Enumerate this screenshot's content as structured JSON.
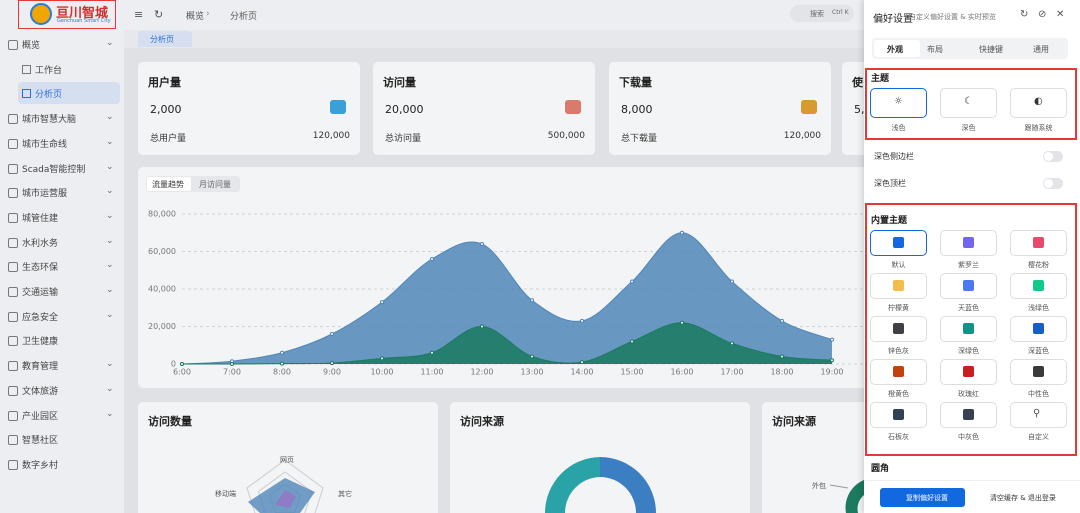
{
  "logo": {
    "title": "亘川智城",
    "subtitle": "Genchuan Smart City"
  },
  "sidebar": {
    "menu": [
      {
        "label": "概览",
        "children": [
          "工作台",
          "分析页"
        ]
      },
      {
        "label": "城市智慧大脑"
      },
      {
        "label": "城市生命线"
      },
      {
        "label": "Scada智能控制"
      },
      {
        "label": "城市运营服"
      },
      {
        "label": "城管住建"
      },
      {
        "label": "水利水务"
      },
      {
        "label": "生态环保"
      },
      {
        "label": "交通运输"
      },
      {
        "label": "应急安全"
      },
      {
        "label": "卫生健康"
      },
      {
        "label": "教育管理"
      },
      {
        "label": "文体旅游"
      },
      {
        "label": "产业园区"
      },
      {
        "label": "智慧社区"
      },
      {
        "label": "数字乡村"
      }
    ]
  },
  "header": {
    "breadcrumb": [
      "概览",
      "分析页"
    ],
    "search": "搜索",
    "shortcut": "Ctrl K",
    "tab": "分析页"
  },
  "cards": [
    {
      "title": "用户量",
      "value": "2,000",
      "total_label": "总用户量",
      "total": "120,000"
    },
    {
      "title": "访问量",
      "value": "20,000",
      "total_label": "总访问量",
      "total": "500,000"
    },
    {
      "title": "下载量",
      "value": "8,000",
      "total_label": "总下载量",
      "total": "120,000"
    },
    {
      "title": "使",
      "value": "5,0"
    }
  ],
  "chart_data": {
    "type": "area",
    "tabs": [
      "流量趋势",
      "月访问量"
    ],
    "x": [
      "6:00",
      "7:00",
      "8:00",
      "9:00",
      "10:00",
      "11:00",
      "12:00",
      "13:00",
      "14:00",
      "15:00",
      "16:00",
      "17:00",
      "18:00",
      "19:00"
    ],
    "series": [
      {
        "color": "#4f86b9",
        "values": [
          0,
          1500,
          6000,
          16000,
          33000,
          56000,
          64000,
          34000,
          23000,
          44000,
          70000,
          44000,
          23000,
          13000
        ]
      },
      {
        "color": "#1b7a5f",
        "values": [
          0,
          0,
          200,
          500,
          3000,
          6000,
          20000,
          4000,
          1000,
          12000,
          22000,
          11000,
          4000,
          2000
        ]
      }
    ],
    "ylim": [
      0,
      80000
    ],
    "yticks": [
      0,
      {
        "value": 20000,
        "label": "20,000"
      },
      {
        "value": 40000,
        "label": "40,000"
      },
      {
        "value": 60000,
        "label": "60,000"
      },
      {
        "value": 80000,
        "label": "80,000"
      }
    ],
    "grid": true
  },
  "bottom": {
    "titles": [
      "访问数量",
      "访问来源",
      "访问来源"
    ],
    "radar_labels": [
      "网页",
      "移动端",
      "其它"
    ],
    "pie_label": "外包"
  },
  "drawer": {
    "title": "偏好设置",
    "subtitle": "自定义偏好设置 & 实时预览",
    "tabs": [
      "外观",
      "布局",
      "快捷键",
      "通用"
    ],
    "theme_heading": "主题",
    "themes": [
      "浅色",
      "深色",
      "跟随系统"
    ],
    "toggles": [
      "深色侧边栏",
      "深色顶栏"
    ],
    "builtin_heading": "内置主题",
    "builtin": [
      {
        "label": "默认",
        "color": "#1268de"
      },
      {
        "label": "紫罗兰",
        "color": "#7166f0"
      },
      {
        "label": "樱花粉",
        "color": "#e84a6c"
      },
      {
        "label": "柠檬黄",
        "color": "#f2bd4b"
      },
      {
        "label": "天蓝色",
        "color": "#4c79f2"
      },
      {
        "label": "浅绿色",
        "color": "#10c98c"
      },
      {
        "label": "锌色灰",
        "color": "#3f3f46"
      },
      {
        "label": "深绿色",
        "color": "#0f9488"
      },
      {
        "label": "深蓝色",
        "color": "#1560c8"
      },
      {
        "label": "橙黄色",
        "color": "#c2410c"
      },
      {
        "label": "玫瑰红",
        "color": "#c81e1e"
      },
      {
        "label": "中性色",
        "color": "#3a3a3a"
      },
      {
        "label": "石板灰",
        "color": "#334155"
      },
      {
        "label": "中灰色",
        "color": "#374151"
      },
      {
        "label": "自定义"
      }
    ],
    "radius_heading": "圆角",
    "copy_button": "复制偏好设置",
    "logout_button": "清空缓存 & 退出登录"
  }
}
